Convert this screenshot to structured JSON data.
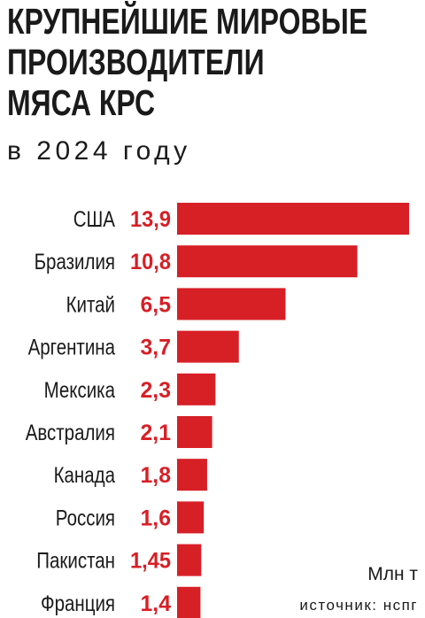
{
  "title_lines": [
    "КРУПНЕЙШИЕ МИРОВЫЕ",
    "ПРОИЗВОДИТЕЛИ",
    "МЯСА КРС"
  ],
  "subtitle": "в 2024 году",
  "unit": "Млн т",
  "source": "источник: нспг",
  "colors": {
    "bar": "#d71f26",
    "value_text": "#d71f26",
    "text": "#1a1a1a"
  },
  "chart_data": {
    "type": "bar",
    "orientation": "horizontal",
    "title": "КРУПНЕЙШИЕ МИРОВЫЕ ПРОИЗВОДИТЕЛИ МЯСА КРС",
    "subtitle": "в 2024 году",
    "unit": "Млн т",
    "categories": [
      "США",
      "Бразилия",
      "Китай",
      "Аргентина",
      "Мексика",
      "Австралия",
      "Канада",
      "Россия",
      "Пакистан",
      "Франция"
    ],
    "values": [
      13.9,
      10.8,
      6.5,
      3.7,
      2.3,
      2.1,
      1.8,
      1.6,
      1.45,
      1.4
    ],
    "value_labels": [
      "13,9",
      "10,8",
      "6,5",
      "3,7",
      "2,3",
      "2,1",
      "1,8",
      "1,6",
      "1,45",
      "1,4"
    ],
    "grid": false,
    "legend": "none"
  }
}
